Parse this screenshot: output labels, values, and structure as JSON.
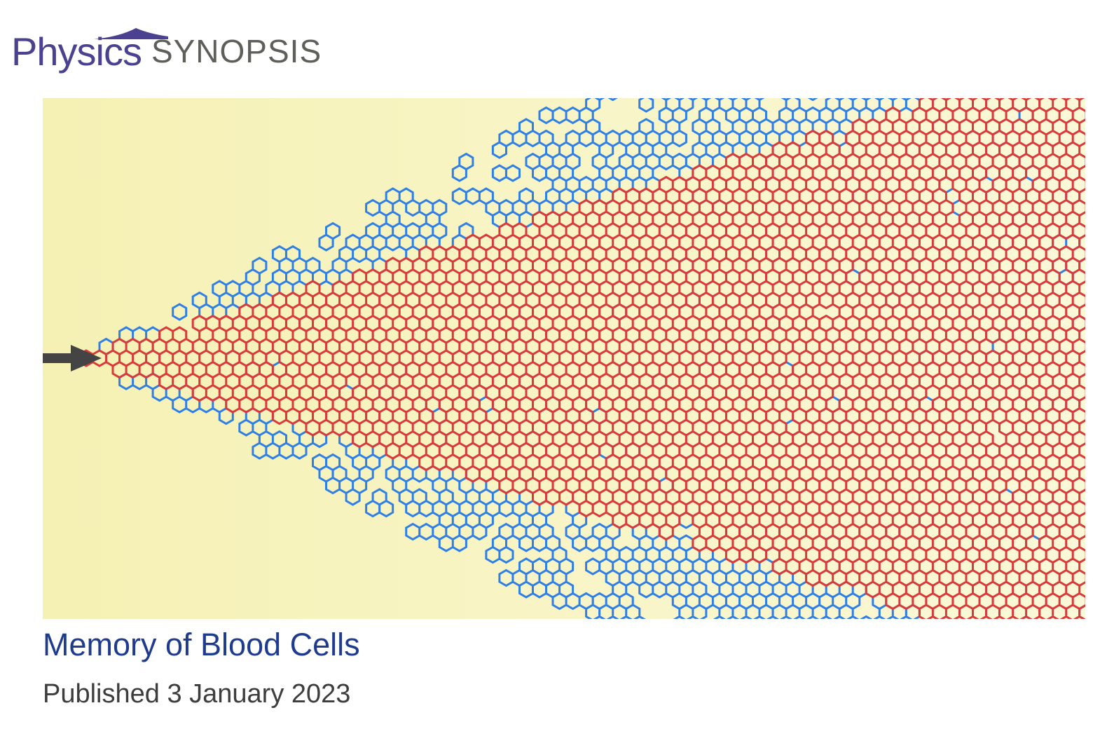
{
  "header": {
    "logo_text": "Physics",
    "section_label": "SYNOPSIS"
  },
  "hero_image": {
    "icon": "microfluidic-network-illustration"
  },
  "article": {
    "title": "Memory of Blood Cells",
    "published": "Published 3 January 2023"
  },
  "colors": {
    "logo": "#4a4190",
    "section_label": "#5f5f5a",
    "title": "#1f3b8f",
    "published": "#3d3d3d",
    "background_yellow": "#f6f2b8",
    "channel_blue": "#2f7fe6",
    "channel_red": "#d93a3a",
    "arrow": "#444444"
  }
}
